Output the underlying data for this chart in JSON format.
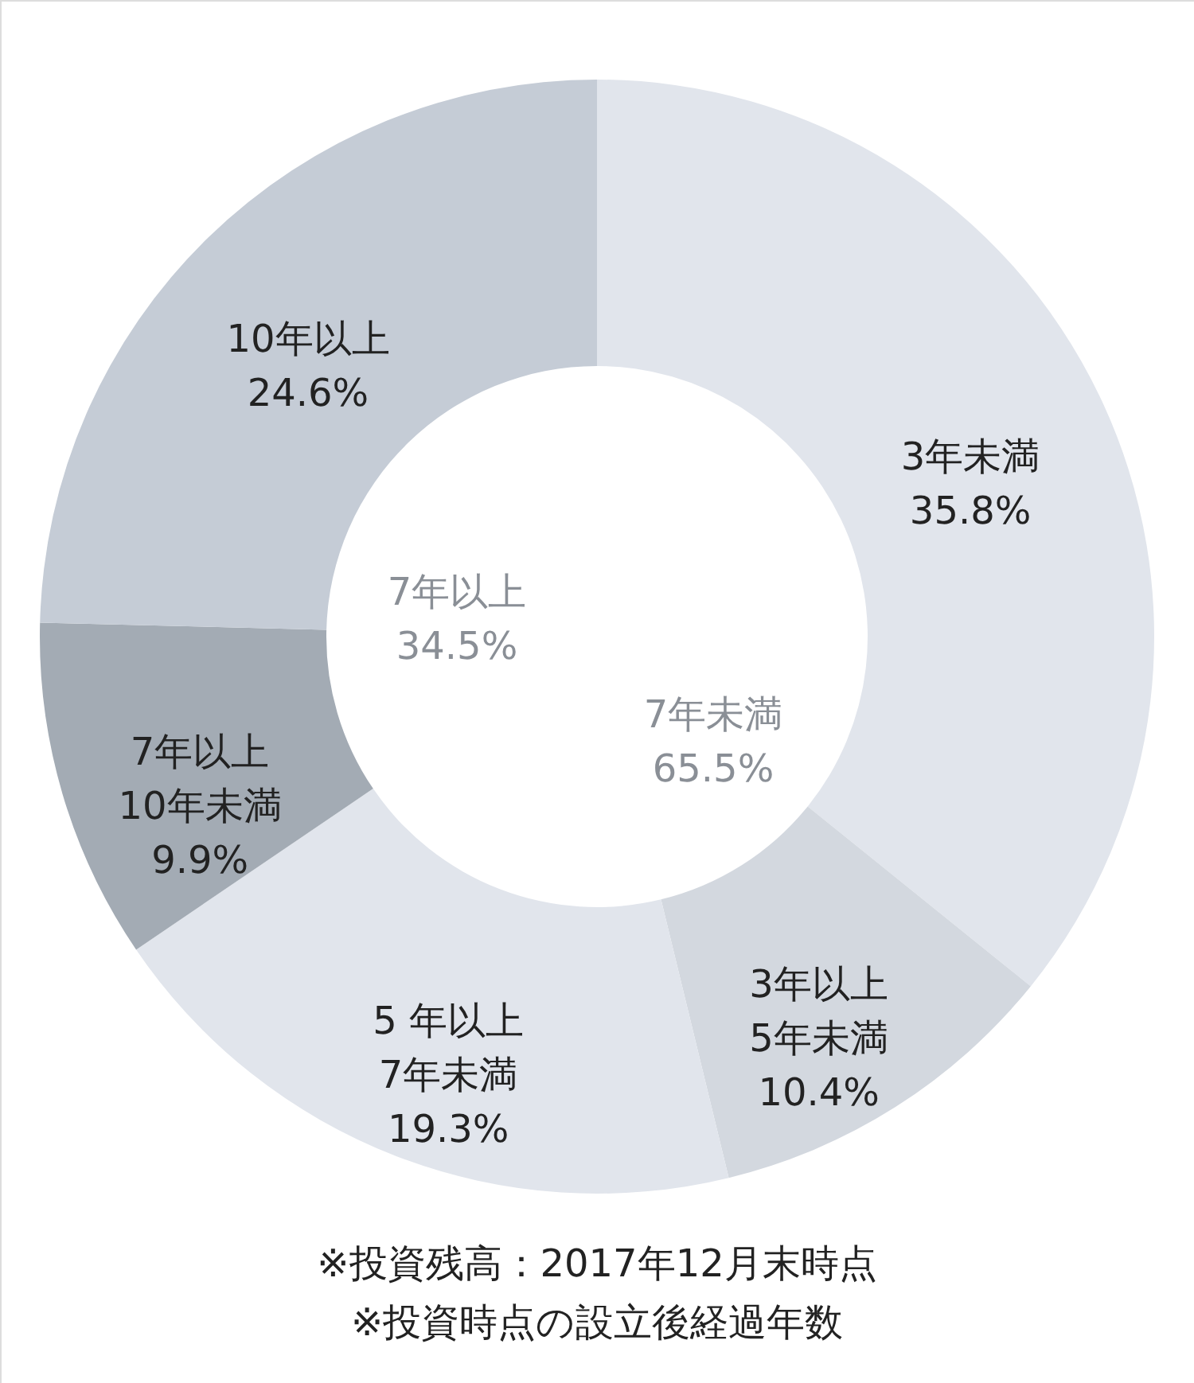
{
  "chart_data": {
    "type": "donut",
    "categories": [
      "3年未満",
      "3年以上\n5年未満",
      "5 年以上\n7年未満",
      "7年以上\n10年未満",
      "10年以上"
    ],
    "values": [
      35.8,
      10.4,
      19.3,
      9.9,
      24.6
    ],
    "value_labels": [
      "35.8%",
      "10.4%",
      "19.3%",
      "9.9%",
      "24.6%"
    ],
    "colors": [
      "#e1e5ec",
      "#d3d8df",
      "#e1e5ec",
      "#a3abb4",
      "#c5ccd6"
    ],
    "annotations": [
      "7年未満\n65.5%",
      "7年以上\n34.5%",
      "※投資残高：2017年12月末時点",
      "※投資時点の設立後経過年数"
    ]
  }
}
